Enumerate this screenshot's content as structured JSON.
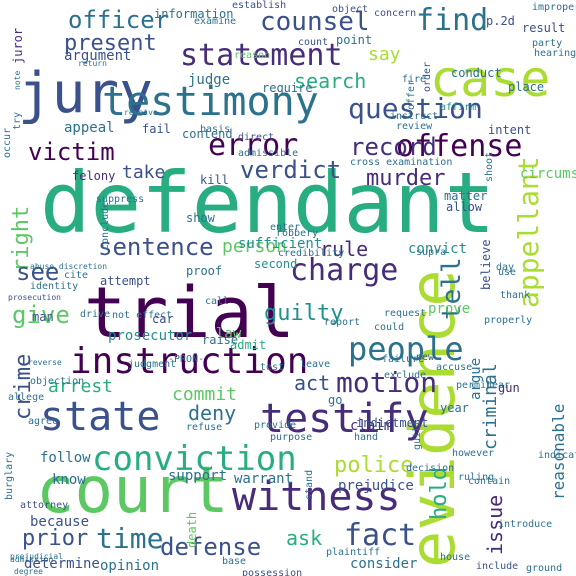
{
  "colors": [
    "#440154",
    "#472c7a",
    "#3b518b",
    "#2c718e",
    "#21908d",
    "#27ad81",
    "#5cc863",
    "#aadc32",
    "#fde725"
  ],
  "words": [
    {
      "text": "defendant",
      "color": 5
    },
    {
      "text": "trial",
      "color": 0
    },
    {
      "text": "court",
      "color": 6
    },
    {
      "text": "evidence",
      "color": 7
    },
    {
      "text": "jury",
      "color": 2
    },
    {
      "text": "case",
      "color": 7
    },
    {
      "text": "testimony",
      "color": 3
    },
    {
      "text": "state",
      "color": 2
    },
    {
      "text": "witness",
      "color": 1
    },
    {
      "text": "testify",
      "color": 1
    },
    {
      "text": "instruction",
      "color": 0
    },
    {
      "text": "statement",
      "color": 1
    },
    {
      "text": "conviction",
      "color": 5
    },
    {
      "text": "people",
      "color": 3
    },
    {
      "text": "appellant",
      "color": 7
    },
    {
      "text": "error",
      "color": 0
    },
    {
      "text": "offense",
      "color": 0
    },
    {
      "text": "question",
      "color": 2
    },
    {
      "text": "motion",
      "color": 1
    },
    {
      "text": "counsel",
      "color": 2
    },
    {
      "text": "officer",
      "color": 3
    },
    {
      "text": "find",
      "color": 3
    },
    {
      "text": "charge",
      "color": 1
    },
    {
      "text": "verdict",
      "color": 2
    },
    {
      "text": "record",
      "color": 1
    },
    {
      "text": "victim",
      "color": 0
    },
    {
      "text": "murder",
      "color": 1
    },
    {
      "text": "sentence",
      "color": 2
    },
    {
      "text": "fact",
      "color": 2
    },
    {
      "text": "defense",
      "color": 2
    },
    {
      "text": "police",
      "color": 7
    },
    {
      "text": "time",
      "color": 3
    },
    {
      "text": "tell",
      "color": 3
    },
    {
      "text": "hold",
      "color": 5
    },
    {
      "text": "issue",
      "color": 1
    },
    {
      "text": "crime",
      "color": 2
    },
    {
      "text": "guilty",
      "color": 4
    },
    {
      "text": "right",
      "color": 6
    },
    {
      "text": "present",
      "color": 2
    },
    {
      "text": "search",
      "color": 5
    },
    {
      "text": "see",
      "color": 2
    },
    {
      "text": "give",
      "color": 6
    },
    {
      "text": "act",
      "color": 2
    },
    {
      "text": "prior",
      "color": 2
    },
    {
      "text": "deny",
      "color": 3
    },
    {
      "text": "ask",
      "color": 5
    },
    {
      "text": "criminal",
      "color": 3
    },
    {
      "text": "reasonable",
      "color": 3
    },
    {
      "text": "rule",
      "color": 1
    },
    {
      "text": "commit",
      "color": 6
    },
    {
      "text": "person",
      "color": 6
    },
    {
      "text": "arrest",
      "color": 5
    },
    {
      "text": "say",
      "color": 7
    },
    {
      "text": "take",
      "color": 2
    },
    {
      "text": "appeal",
      "color": 3
    },
    {
      "text": "argument",
      "color": 2
    },
    {
      "text": "judge",
      "color": 3
    },
    {
      "text": "follow",
      "color": 3
    },
    {
      "text": "support",
      "color": 3
    },
    {
      "text": "prejudice",
      "color": 2
    },
    {
      "text": "warrant",
      "color": 3
    },
    {
      "text": "law",
      "color": 6
    },
    {
      "text": "prosecutor",
      "color": 4
    },
    {
      "text": "convict",
      "color": 4
    },
    {
      "text": "prove",
      "color": 6
    },
    {
      "text": "argue",
      "color": 3
    },
    {
      "text": "circumstance",
      "color": 6
    },
    {
      "text": "know",
      "color": 3
    },
    {
      "text": "consider",
      "color": 3
    },
    {
      "text": "determine",
      "color": 2
    },
    {
      "text": "opinion",
      "color": 3
    },
    {
      "text": "because",
      "color": 2
    },
    {
      "text": "claim",
      "color": 1
    },
    {
      "text": "man",
      "color": 2
    },
    {
      "text": "contend",
      "color": 3
    },
    {
      "text": "felony",
      "color": 1
    },
    {
      "text": "fail",
      "color": 2
    },
    {
      "text": "require",
      "color": 3
    },
    {
      "text": "intent",
      "color": 2
    },
    {
      "text": "conduct",
      "color": 3
    },
    {
      "text": "believe",
      "color": 2
    },
    {
      "text": "sufficient",
      "color": 4
    },
    {
      "text": "raise",
      "color": 3
    },
    {
      "text": "car",
      "color": 2
    },
    {
      "text": "second",
      "color": 4
    },
    {
      "text": "admit",
      "color": 5
    },
    {
      "text": "indictment",
      "color": 2
    },
    {
      "text": "death",
      "color": 6
    },
    {
      "text": "gun",
      "color": 1
    },
    {
      "text": "year",
      "color": 3
    },
    {
      "text": "go",
      "color": 3
    },
    {
      "text": "show",
      "color": 3
    },
    {
      "text": "kill",
      "color": 2
    },
    {
      "text": "proof",
      "color": 3
    },
    {
      "text": "attempt",
      "color": 2
    },
    {
      "text": "establish",
      "color": 2
    },
    {
      "text": "information",
      "color": 3
    },
    {
      "text": "p.2d",
      "color": 2
    },
    {
      "text": "result",
      "color": 2
    },
    {
      "text": "juror",
      "color": 1
    },
    {
      "text": "point",
      "color": 3
    },
    {
      "text": "order",
      "color": 2
    },
    {
      "text": "place",
      "color": 3
    },
    {
      "text": "direct",
      "color": 2
    },
    {
      "text": "allow",
      "color": 2
    },
    {
      "text": "matter",
      "color": 3
    },
    {
      "text": "affirm",
      "color": 4
    },
    {
      "text": "instruct",
      "color": 3
    },
    {
      "text": "review",
      "color": 3
    },
    {
      "text": "object",
      "color": 2
    },
    {
      "text": "concern",
      "color": 2
    },
    {
      "text": "count",
      "color": 2
    },
    {
      "text": "reason",
      "color": 6
    },
    {
      "text": "examine",
      "color": 3
    },
    {
      "text": "party",
      "color": 3
    },
    {
      "text": "hearing",
      "color": 3
    },
    {
      "text": "improper",
      "color": 3
    },
    {
      "text": "return",
      "color": 3
    },
    {
      "text": "receive",
      "color": 3
    },
    {
      "text": "fire",
      "color": 3
    },
    {
      "text": "offer",
      "color": 3
    },
    {
      "text": "basis",
      "color": 3
    },
    {
      "text": "admissible",
      "color": 3
    },
    {
      "text": "cross examination",
      "color": 3
    },
    {
      "text": "suppress",
      "color": 3
    },
    {
      "text": "conclude",
      "color": 3
    },
    {
      "text": "abuse discretion",
      "color": 3
    },
    {
      "text": "cite",
      "color": 3
    },
    {
      "text": "identity",
      "color": 3
    },
    {
      "text": "prosecution",
      "color": 2
    },
    {
      "text": "not effect",
      "color": 3
    },
    {
      "text": "drive",
      "color": 3
    },
    {
      "text": "reverse",
      "color": 3
    },
    {
      "text": "objection",
      "color": 3
    },
    {
      "text": "allege",
      "color": 3
    },
    {
      "text": "agree",
      "color": 3
    },
    {
      "text": "attorney",
      "color": 2
    },
    {
      "text": "burglary",
      "color": 3
    },
    {
      "text": "base",
      "color": 3
    },
    {
      "text": "possession",
      "color": 2
    },
    {
      "text": "house",
      "color": 3
    },
    {
      "text": "include",
      "color": 2
    },
    {
      "text": "ground",
      "color": 3
    },
    {
      "text": "refuse",
      "color": 3
    },
    {
      "text": "purpose",
      "color": 3
    },
    {
      "text": "decision",
      "color": 3
    },
    {
      "text": "however",
      "color": 3
    },
    {
      "text": "indicate",
      "color": 3
    },
    {
      "text": "ruling",
      "color": 3
    },
    {
      "text": "hear",
      "color": 3
    },
    {
      "text": "permit",
      "color": 3
    },
    {
      "text": "exclude",
      "color": 3
    },
    {
      "text": "new",
      "color": 2
    },
    {
      "text": "accuse",
      "color": 3
    },
    {
      "text": "failure",
      "color": 3
    },
    {
      "text": "leave",
      "color": 3
    },
    {
      "text": "-PRON-",
      "color": 3
    },
    {
      "text": "test",
      "color": 3
    },
    {
      "text": "judgment",
      "color": 3
    },
    {
      "text": "report",
      "color": 3
    },
    {
      "text": "request",
      "color": 3
    },
    {
      "text": "could",
      "color": 3
    },
    {
      "text": "properly",
      "color": 3
    },
    {
      "text": "thank",
      "color": 3
    },
    {
      "text": "use",
      "color": 3
    },
    {
      "text": "day",
      "color": 3
    },
    {
      "text": "supra",
      "color": 3
    },
    {
      "text": "shoot",
      "color": 3
    },
    {
      "text": "robbery",
      "color": 3
    },
    {
      "text": "credibility",
      "color": 3
    },
    {
      "text": "enter",
      "color": 3
    },
    {
      "text": "call",
      "color": 3
    },
    {
      "text": "try",
      "color": 3
    },
    {
      "text": "occur",
      "color": 3
    },
    {
      "text": "provide",
      "color": 3
    },
    {
      "text": "note",
      "color": 3
    },
    {
      "text": "hand",
      "color": 3
    },
    {
      "text": "stand",
      "color": 3
    },
    {
      "text": "contain",
      "color": 3
    },
    {
      "text": "plaintiff",
      "color": 3
    },
    {
      "text": "introduce",
      "color": 3
    },
    {
      "text": "guilt",
      "color": 3
    },
    {
      "text": "degree",
      "color": 3
    },
    {
      "text": "prejudicial",
      "color": 3
    },
    {
      "text": "admission",
      "color": 3
    }
  ]
}
